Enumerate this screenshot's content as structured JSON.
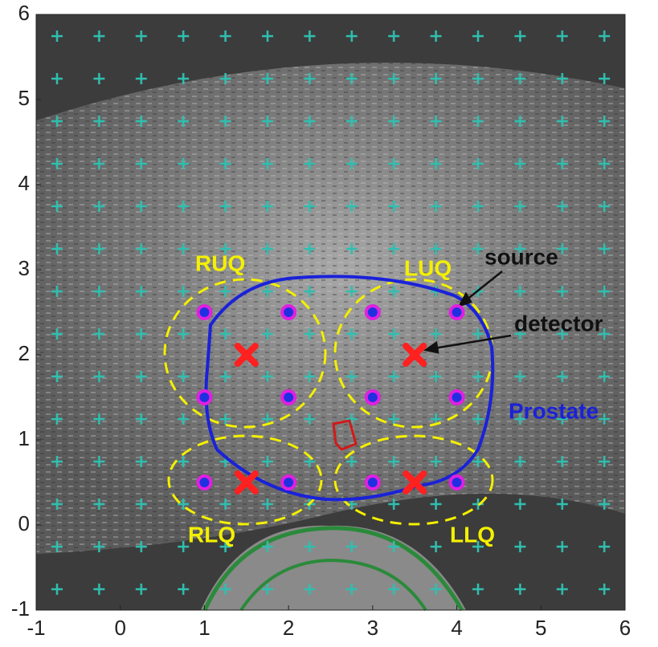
{
  "chart_data": {
    "type": "scatter",
    "xlim": [
      -1,
      6
    ],
    "ylim": [
      -1,
      6
    ],
    "xticks": [
      -1,
      0,
      1,
      2,
      3,
      4,
      5,
      6
    ],
    "yticks": [
      -1,
      0,
      1,
      2,
      3,
      4,
      5,
      6
    ],
    "series": [
      {
        "name": "source",
        "color": "#e020e0",
        "x": [
          1,
          2,
          3,
          4,
          1,
          2,
          3,
          4,
          1,
          2,
          3,
          4
        ],
        "y": [
          2.5,
          2.5,
          2.5,
          2.5,
          1.5,
          1.5,
          1.5,
          1.5,
          0.5,
          0.5,
          0.5,
          0.5
        ]
      },
      {
        "name": "detector",
        "color": "#ff2020",
        "x": [
          1.5,
          3.5,
          1.5,
          3.5
        ],
        "y": [
          2,
          2,
          0.5,
          0.5
        ]
      }
    ],
    "annotations": [
      "RUQ",
      "LUQ",
      "RLQ",
      "LLQ",
      "Prostate"
    ]
  }
}
